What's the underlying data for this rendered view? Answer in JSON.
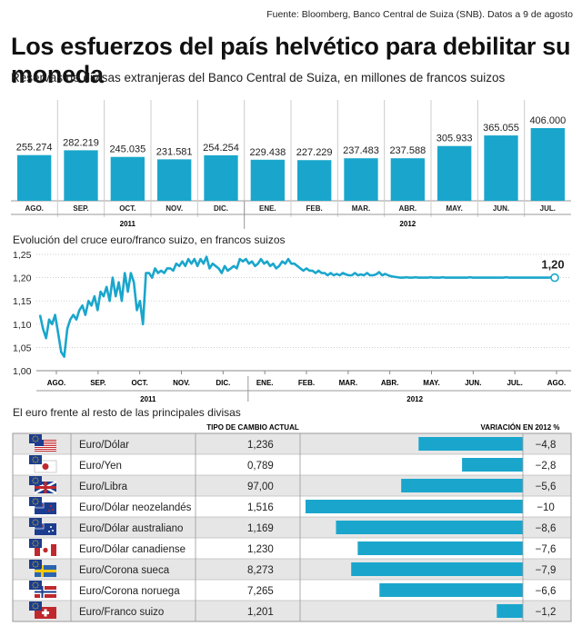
{
  "source": "Fuente: Bloomberg, Banco Central de Suiza (SNB). Datos a 9 de agosto",
  "title": "Los esfuerzos del país helvético para debilitar su moneda",
  "subtitle": "Reservas de divisas extranjeras del Banco Central de Suiza, en millones de francos suizos",
  "colors": {
    "accent": "#1aa6cc",
    "grid": "#bbbbbb",
    "text": "#222222"
  },
  "chart_data": [
    {
      "type": "bar",
      "categories": [
        "AGO.",
        "SEP.",
        "OCT.",
        "NOV.",
        "DIC.",
        "ENE.",
        "FEB.",
        "MAR.",
        "ABR.",
        "MAY.",
        "JUN.",
        "JUL."
      ],
      "values": [
        255274,
        282219,
        245035,
        231581,
        254254,
        229438,
        227229,
        237483,
        237588,
        305933,
        365055,
        406000
      ],
      "value_labels": [
        "255.274",
        "282.219",
        "245.035",
        "231.581",
        "254.254",
        "229.438",
        "227.229",
        "237.483",
        "237.588",
        "305.933",
        "365.055",
        "406.000"
      ],
      "year_labels": [
        "2011",
        "2012"
      ],
      "ylim": [
        0,
        406000
      ]
    },
    {
      "type": "line",
      "title": "Evolución del cruce euro/franco suizo, en francos suizos",
      "x_labels": [
        "AGO.",
        "SEP.",
        "OCT.",
        "NOV.",
        "DIC.",
        "ENE.",
        "FEB.",
        "MAR.",
        "ABR.",
        "MAY.",
        "JUN.",
        "JUL.",
        "AGO."
      ],
      "year_labels": [
        "2011",
        "2012"
      ],
      "y_ticks": [
        "1,00",
        "1,05",
        "1,10",
        "1,15",
        "1,20",
        "1,25"
      ],
      "ylim": [
        1.0,
        1.25
      ],
      "last_value_label": "1,20",
      "values": [
        1.12,
        1.09,
        1.07,
        1.11,
        1.1,
        1.12,
        1.08,
        1.04,
        1.03,
        1.09,
        1.11,
        1.12,
        1.11,
        1.13,
        1.14,
        1.12,
        1.15,
        1.14,
        1.16,
        1.13,
        1.17,
        1.16,
        1.18,
        1.15,
        1.2,
        1.16,
        1.19,
        1.15,
        1.21,
        1.17,
        1.21,
        1.19,
        1.13,
        1.15,
        1.1,
        1.21,
        1.21,
        1.2,
        1.22,
        1.21,
        1.215,
        1.21,
        1.22,
        1.22,
        1.215,
        1.23,
        1.225,
        1.235,
        1.225,
        1.24,
        1.23,
        1.24,
        1.225,
        1.24,
        1.23,
        1.245,
        1.22,
        1.23,
        1.225,
        1.22,
        1.21,
        1.225,
        1.215,
        1.22,
        1.225,
        1.22,
        1.24,
        1.235,
        1.24,
        1.23,
        1.235,
        1.225,
        1.23,
        1.24,
        1.23,
        1.235,
        1.225,
        1.23,
        1.22,
        1.225,
        1.235,
        1.23,
        1.24,
        1.23,
        1.23,
        1.225,
        1.22,
        1.215,
        1.22,
        1.215,
        1.215,
        1.21,
        1.215,
        1.21,
        1.21,
        1.205,
        1.21,
        1.205,
        1.208,
        1.205,
        1.21,
        1.207,
        1.205,
        1.205,
        1.21,
        1.205,
        1.207,
        1.205,
        1.21,
        1.205,
        1.205,
        1.207,
        1.212,
        1.205,
        1.208,
        1.205,
        1.203,
        1.202,
        1.201,
        1.2,
        1.2,
        1.201,
        1.2,
        1.2,
        1.201,
        1.2,
        1.2,
        1.2,
        1.2,
        1.201,
        1.2,
        1.2,
        1.2,
        1.201,
        1.2,
        1.2,
        1.2,
        1.2,
        1.2,
        1.2,
        1.2,
        1.2,
        1.201,
        1.2,
        1.2,
        1.2,
        1.2,
        1.2,
        1.2,
        1.2,
        1.2,
        1.2,
        1.2,
        1.2,
        1.201,
        1.2,
        1.2,
        1.2,
        1.2,
        1.2,
        1.2,
        1.2,
        1.2,
        1.2,
        1.2,
        1.2,
        1.2,
        1.2,
        1.2,
        1.201,
        1.2
      ]
    },
    {
      "type": "table",
      "title": "El euro frente al resto de las principales divisas",
      "columns": [
        "TIPO DE CAMBIO ACTUAL",
        "VARIACIÓN EN 2012 %"
      ],
      "bar_max": 10,
      "rows": [
        {
          "flag": "usa-flag-icon",
          "pair": "Euro/Dólar",
          "rate": "1,236",
          "change": -4.8,
          "change_label": "−4,8"
        },
        {
          "flag": "japan-flag-icon",
          "pair": "Euro/Yen",
          "rate": "0,789",
          "change": -2.8,
          "change_label": "−2,8"
        },
        {
          "flag": "uk-flag-icon",
          "pair": "Euro/Libra",
          "rate": "97,00",
          "change": -5.6,
          "change_label": "−5,6"
        },
        {
          "flag": "new-zealand-flag-icon",
          "pair": "Euro/Dólar neozelandés",
          "rate": "1,516",
          "change": -10,
          "change_label": "−10"
        },
        {
          "flag": "australia-flag-icon",
          "pair": "Euro/Dólar australiano",
          "rate": "1,169",
          "change": -8.6,
          "change_label": "−8,6"
        },
        {
          "flag": "canada-flag-icon",
          "pair": "Euro/Dólar canadiense",
          "rate": "1,230",
          "change": -7.6,
          "change_label": "−7,6"
        },
        {
          "flag": "sweden-flag-icon",
          "pair": "Euro/Corona sueca",
          "rate": "8,273",
          "change": -7.9,
          "change_label": "−7,9"
        },
        {
          "flag": "norway-flag-icon",
          "pair": "Euro/Corona noruega",
          "rate": "7,265",
          "change": -6.6,
          "change_label": "−6,6"
        },
        {
          "flag": "switzerland-flag-icon",
          "pair": "Euro/Franco suizo",
          "rate": "1,201",
          "change": -1.2,
          "change_label": "−1,2"
        }
      ]
    }
  ]
}
